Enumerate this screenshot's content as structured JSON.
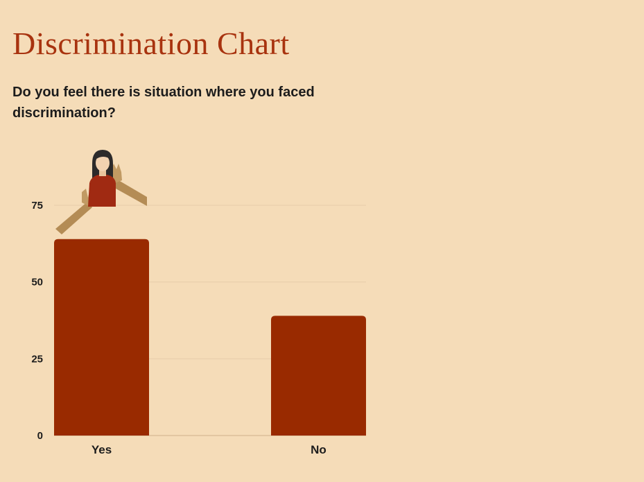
{
  "page": {
    "title": "Discrimination Chart",
    "subtitle": "Do you feel there is situation where you faced discrimination?"
  },
  "colors": {
    "background": "#f5dcb8",
    "bar": "#992a00",
    "title": "#a8330f",
    "grid": "#e6ccaa"
  },
  "illustration": {
    "icon": "woman-with-reaching-hands-icon"
  },
  "chart_data": {
    "type": "bar",
    "categories": [
      "Yes",
      "No"
    ],
    "values": [
      64,
      39
    ],
    "title": "",
    "xlabel": "",
    "ylabel": "",
    "ylim": [
      0,
      75
    ],
    "yticks": [
      0,
      25,
      50,
      75
    ],
    "grid": true,
    "legend": "none"
  }
}
